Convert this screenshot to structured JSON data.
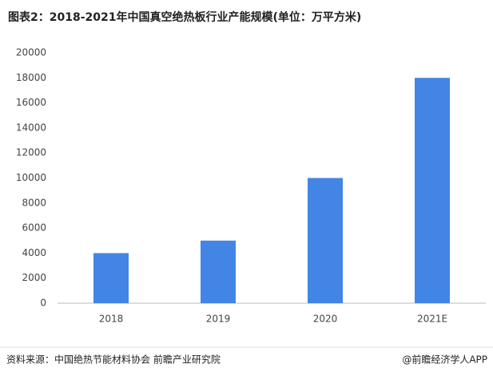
{
  "chart_data": {
    "type": "bar",
    "title": "图表2：2018-2021年中国真空绝热板行业产能规模(单位：万平方米)",
    "categories": [
      "2018",
      "2019",
      "2020",
      "2021E"
    ],
    "values": [
      4000,
      5000,
      10000,
      18000
    ],
    "color": "#4285e4",
    "ylim": [
      0,
      20000
    ],
    "yticks": [
      0,
      2000,
      4000,
      6000,
      8000,
      10000,
      12000,
      14000,
      16000,
      18000,
      20000
    ],
    "grid": false,
    "source": "资料来源：中国绝热节能材料协会 前瞻产业研究院",
    "credit": "@前瞻经济学人APP"
  }
}
